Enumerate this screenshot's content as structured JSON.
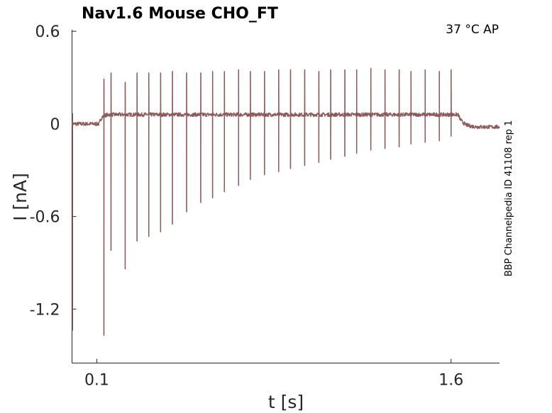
{
  "chart_data": {
    "type": "line",
    "title": "Nav1.6  Mouse  CHO_FT",
    "annotation": "37 °C  AP",
    "side_label": "BBP Channelpedia ID 41108 rep 1",
    "xlabel": "t [s]",
    "ylabel": "I [nA]",
    "xlim": [
      -0.005,
      1.805
    ],
    "ylim": [
      -1.55,
      0.61
    ],
    "xticks": [
      0.1,
      1.6
    ],
    "xtick_labels": [
      "0.1",
      "1.6"
    ],
    "yticks": [
      0.6,
      0,
      -0.6,
      -1.2
    ],
    "ytick_labels": [
      "0.6",
      "0",
      "-0.6",
      "-1.2"
    ],
    "grid": false,
    "series": [
      {
        "color": "#8b5a5a",
        "baseline": {
          "pre": 0.0,
          "start": 0.11,
          "end": 1.63,
          "during": 0.06,
          "post": -0.02
        },
        "spikes": [
          {
            "t": 0.13,
            "up": 0.29,
            "down": -1.37
          },
          {
            "t": 0.16,
            "up": 0.33,
            "down": -0.82
          },
          {
            "t": 0.22,
            "up": 0.27,
            "down": -0.94
          },
          {
            "t": 0.27,
            "up": 0.33,
            "down": -0.76
          },
          {
            "t": 0.32,
            "up": 0.33,
            "down": -0.73
          },
          {
            "t": 0.37,
            "up": 0.33,
            "down": -0.7
          },
          {
            "t": 0.42,
            "up": 0.34,
            "down": -0.65
          },
          {
            "t": 0.48,
            "up": 0.33,
            "down": -0.57
          },
          {
            "t": 0.54,
            "up": 0.33,
            "down": -0.51
          },
          {
            "t": 0.59,
            "up": 0.34,
            "down": -0.48
          },
          {
            "t": 0.64,
            "up": 0.34,
            "down": -0.44
          },
          {
            "t": 0.7,
            "up": 0.35,
            "down": -0.4
          },
          {
            "t": 0.75,
            "up": 0.34,
            "down": -0.36
          },
          {
            "t": 0.81,
            "up": 0.34,
            "down": -0.33
          },
          {
            "t": 0.87,
            "up": 0.35,
            "down": -0.31
          },
          {
            "t": 0.92,
            "up": 0.35,
            "down": -0.29
          },
          {
            "t": 0.98,
            "up": 0.35,
            "down": -0.27
          },
          {
            "t": 1.04,
            "up": 0.34,
            "down": -0.25
          },
          {
            "t": 1.09,
            "up": 0.35,
            "down": -0.23
          },
          {
            "t": 1.15,
            "up": 0.35,
            "down": -0.21
          },
          {
            "t": 1.2,
            "up": 0.35,
            "down": -0.19
          },
          {
            "t": 1.26,
            "up": 0.36,
            "down": -0.17
          },
          {
            "t": 1.32,
            "up": 0.35,
            "down": -0.16
          },
          {
            "t": 1.38,
            "up": 0.35,
            "down": -0.15
          },
          {
            "t": 1.43,
            "up": 0.34,
            "down": -0.13
          },
          {
            "t": 1.49,
            "up": 0.35,
            "down": -0.12
          },
          {
            "t": 1.55,
            "up": 0.34,
            "down": -0.11
          },
          {
            "t": 1.6,
            "up": 0.35,
            "down": -0.08
          }
        ]
      }
    ]
  }
}
